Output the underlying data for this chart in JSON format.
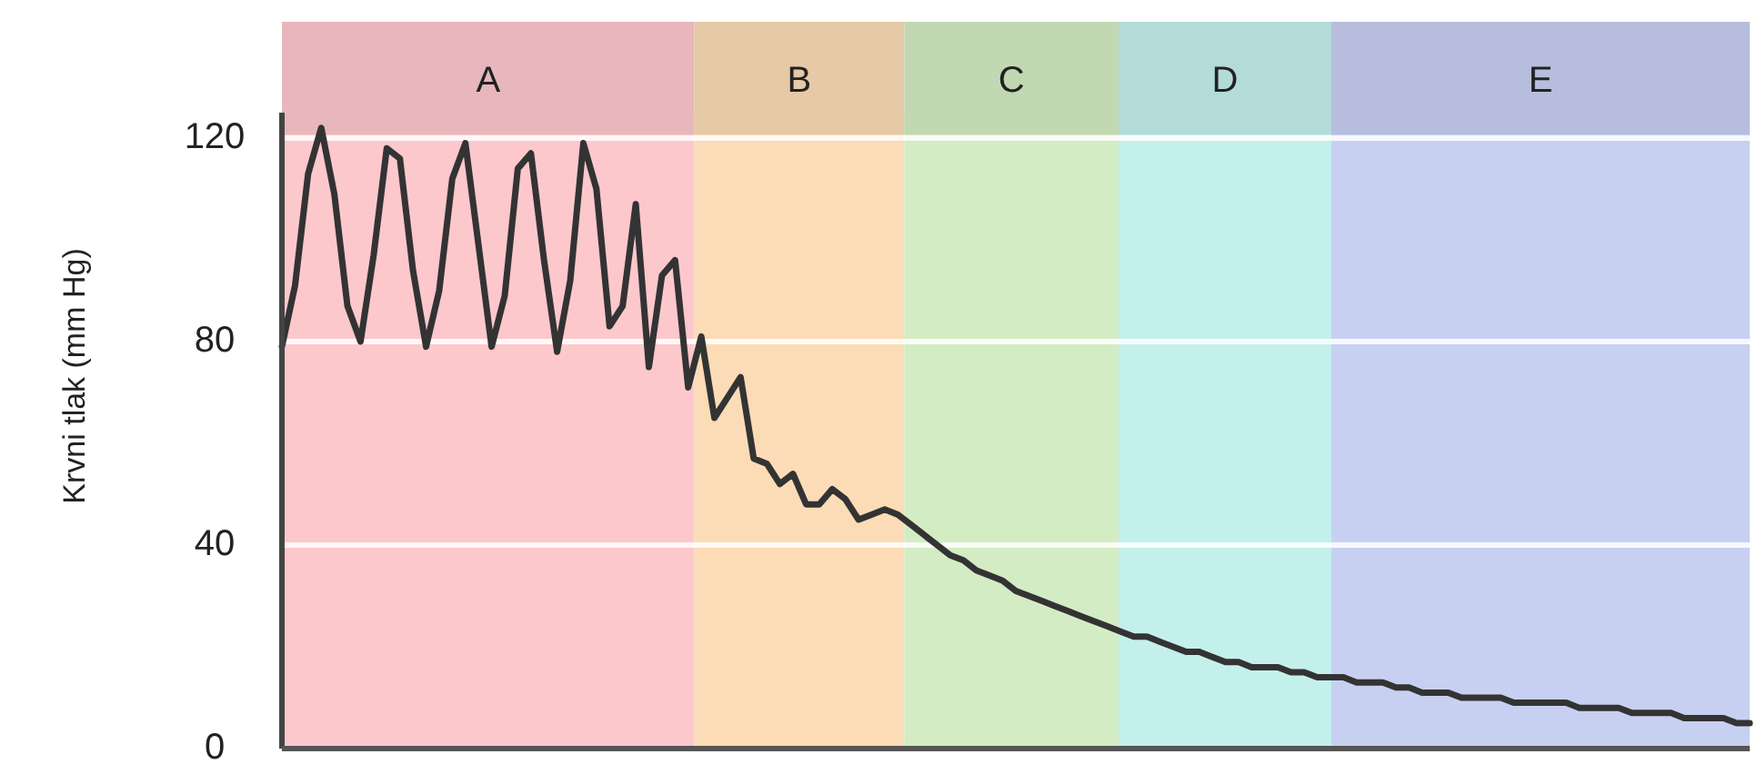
{
  "chart_data": {
    "type": "line",
    "ylabel": "Krvni tlak (mm Hg)",
    "ylim": [
      0,
      125
    ],
    "yticks": [
      0,
      40,
      80,
      120
    ],
    "tick_labels": "y",
    "grid": "y",
    "marker": "none",
    "line_style": "solid",
    "categories": [
      null,
      null,
      null,
      null,
      null,
      null,
      null,
      null,
      null,
      null,
      null,
      null,
      null,
      null,
      null,
      null,
      null,
      null,
      null,
      null,
      null,
      null,
      null,
      null,
      null,
      null,
      null,
      null,
      null,
      null,
      null,
      null,
      null,
      null,
      null,
      null,
      null,
      null,
      null,
      null,
      null,
      null,
      null,
      null,
      null,
      null,
      null,
      null,
      null,
      null,
      null,
      null,
      null,
      null,
      null,
      null,
      null,
      null,
      null,
      null,
      null,
      null,
      null,
      null,
      null,
      null,
      null,
      null,
      null,
      null,
      null,
      null,
      null,
      null,
      null,
      null,
      null,
      null,
      null,
      null,
      null,
      null,
      null,
      null,
      null,
      null,
      null,
      null,
      null,
      null,
      null,
      null,
      null,
      null,
      null,
      null,
      null,
      null,
      null,
      null,
      null,
      null,
      null,
      null,
      null,
      null,
      null,
      null,
      null,
      null,
      null,
      null,
      null
    ],
    "series": [
      {
        "color": "#333333",
        "values": [
          79,
          91,
          113,
          122,
          109,
          87,
          80,
          97,
          118,
          116,
          94,
          79,
          90,
          112,
          119,
          99,
          79,
          89,
          114,
          117,
          96,
          78,
          92,
          119,
          110,
          83,
          87,
          107,
          75,
          93,
          96,
          71,
          81,
          65,
          69,
          73,
          57,
          56,
          52,
          54,
          48,
          48,
          51,
          49,
          45,
          46,
          47,
          46,
          44,
          42,
          40,
          38,
          37,
          35,
          34,
          33,
          31,
          30,
          29,
          28,
          27,
          26,
          25,
          24,
          23,
          22,
          22,
          21,
          20,
          19,
          19,
          18,
          17,
          17,
          16,
          16,
          16,
          15,
          15,
          14,
          14,
          14,
          13,
          13,
          13,
          12,
          12,
          11,
          11,
          11,
          10,
          10,
          10,
          10,
          9,
          9,
          9,
          9,
          9,
          8,
          8,
          8,
          8,
          7,
          7,
          7,
          7,
          6,
          6,
          6,
          6,
          5,
          5
        ]
      }
    ],
    "annotations": [
      "A",
      "B",
      "C",
      "D",
      "E"
    ]
  }
}
